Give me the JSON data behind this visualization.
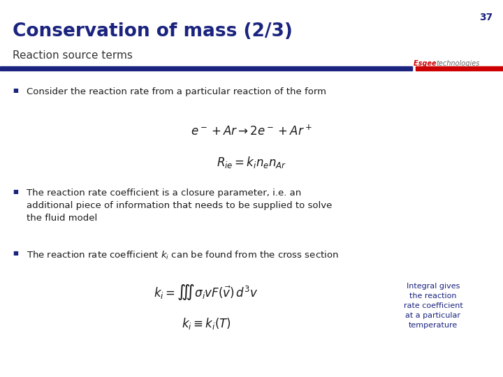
{
  "slide_number": "37",
  "title": "Conservation of mass (2/3)",
  "subtitle": "Reaction source terms",
  "title_color": "#1a237e",
  "subtitle_color": "#333333",
  "slide_number_color": "#1a237e",
  "brand_esgee": "Esgee ",
  "brand_tech": "technologies",
  "brand_color_esgee": "#cc0000",
  "brand_color_tech": "#666666",
  "bar_color": "#1a237e",
  "bar_accent_color": "#cc0000",
  "background_color": "#ffffff",
  "bullet_color": "#1a237e",
  "text_color": "#1a1a1a",
  "annotation_color": "#1a237e",
  "bullet1": "Consider the reaction rate from a particular reaction of the form",
  "eq1": "$e^- + Ar \\rightarrow 2e^- + Ar^+$",
  "eq2": "$R_{ie} = k_i n_e n_{Ar}$",
  "bullet2": "The reaction rate coefficient is a closure parameter, i.e. an\nadditional piece of information that needs to be supplied to solve\nthe fluid model",
  "bullet3_full": "The reaction rate coefficient $\\boldsymbol{k_i}$ can be found from the cross section",
  "eq3": "$k_i = \\iiint \\sigma_i v F(\\vec{v})\\, d^3 v$",
  "eq4": "$k_i \\equiv k_i(T)$",
  "annotation": "Integral gives\nthe reaction\nrate coefficient\nat a particular\ntemperature"
}
